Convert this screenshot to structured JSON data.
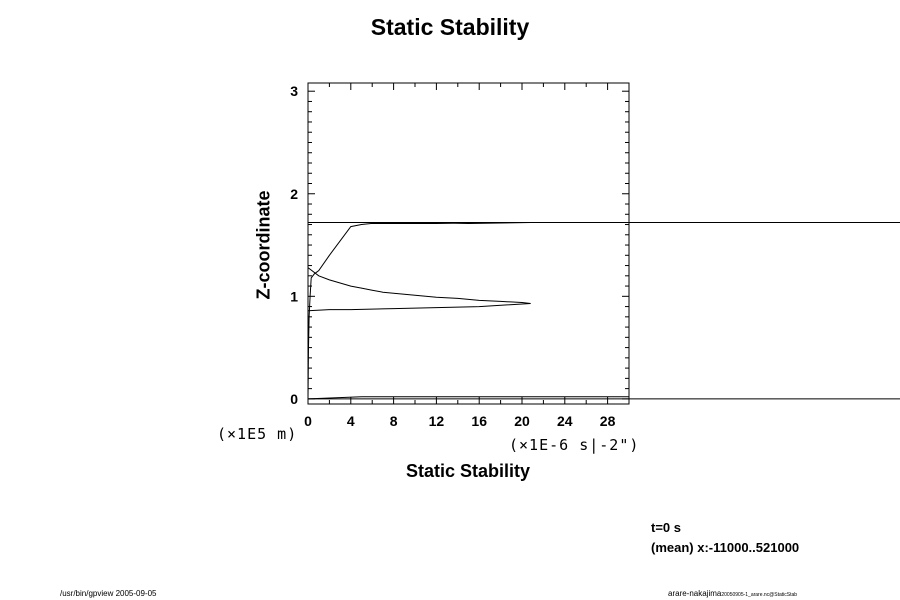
{
  "chart_data": {
    "type": "line",
    "title": "Static Stability",
    "xlabel": "Static Stability",
    "ylabel": "Z-coordinate",
    "x_unit": "(×1E-6 s|-2\")",
    "y_unit": "(×1E5 m)",
    "xlim": [
      0,
      30
    ],
    "ylim": [
      -0.05,
      3.08
    ],
    "x_ticks": [
      0,
      4,
      8,
      12,
      16,
      20,
      24,
      28
    ],
    "y_ticks": [
      0,
      1,
      2,
      3
    ],
    "grid": false,
    "series": [
      {
        "x": [
          0,
          0.05,
          0.1,
          0.2,
          0.3,
          0.6,
          1.0,
          2.0,
          3.0,
          4.0,
          5.0,
          5.9,
          6.2,
          6.7,
          12,
          18,
          20.8,
          15,
          10,
          5,
          2,
          0.3,
          0,
          5.6,
          11,
          16,
          25,
          30
        ],
        "y": [
          0.0,
          0.5,
          0.8,
          1.0,
          1.18,
          1.22,
          1.25,
          1.4,
          1.54,
          1.68,
          1.7,
          1.71,
          1.71,
          1.71,
          1.71,
          1.72,
          1.72,
          1.71,
          1.72,
          1.72,
          1.72,
          1.72,
          1.72,
          1.72,
          1.72,
          1.72,
          1.72,
          1.72
        ]
      },
      {
        "x": [
          0,
          1,
          2,
          3,
          4,
          5,
          6,
          7,
          8,
          9,
          10,
          12,
          14,
          16,
          18,
          20,
          20.8
        ],
        "y": [
          1.28,
          1.2,
          1.16,
          1.13,
          1.1,
          1.08,
          1.06,
          1.04,
          1.03,
          1.02,
          1.01,
          0.99,
          0.98,
          0.96,
          0.95,
          0.94,
          0.93
        ]
      },
      {
        "x": [
          0,
          2,
          4,
          8,
          12,
          16,
          20.8
        ],
        "y": [
          0.86,
          0.87,
          0.87,
          0.88,
          0.89,
          0.9,
          0.93
        ]
      },
      {
        "x": [
          0,
          5,
          5.5,
          6,
          10,
          20,
          30
        ],
        "y": [
          0.0,
          0.02,
          0.02,
          0.02,
          0.02,
          0.02,
          0.02
        ]
      }
    ],
    "reference_lines": [
      {
        "y": 1.72
      },
      {
        "y": 0.0
      }
    ]
  },
  "info": {
    "time": "t=0 s",
    "mean": "(mean) x:-11000..521000"
  },
  "footer": {
    "left": "/usr/bin/gpview 2005-09-05",
    "right_main": "arare-nakajima",
    "right_sub": "20050905-1_arare.nc@StaticStab"
  }
}
